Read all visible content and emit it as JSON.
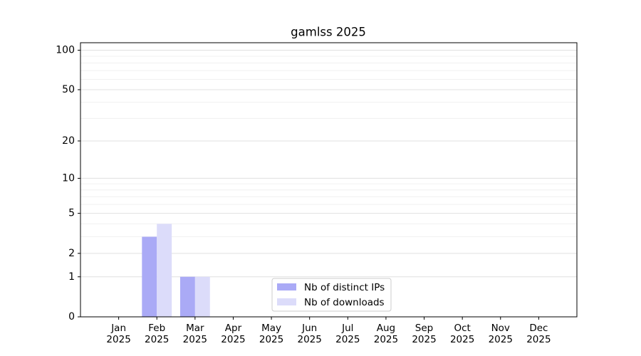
{
  "chart_data": {
    "type": "bar",
    "title": "gamlss 2025",
    "categories": [
      "Jan\n2025",
      "Feb\n2025",
      "Mar\n2025",
      "Apr\n2025",
      "May\n2025",
      "Jun\n2025",
      "Jul\n2025",
      "Aug\n2025",
      "Sep\n2025",
      "Oct\n2025",
      "Nov\n2025",
      "Dec\n2025"
    ],
    "series": [
      {
        "name": "Nb of distinct IPs",
        "color": "#aaaaf6",
        "values": [
          0,
          3,
          1,
          0,
          0,
          0,
          0,
          0,
          0,
          0,
          0,
          0
        ]
      },
      {
        "name": "Nb of downloads",
        "color": "#dcdcfa",
        "values": [
          0,
          4,
          1,
          0,
          0,
          0,
          0,
          0,
          0,
          0,
          0,
          0
        ]
      }
    ],
    "yscale": "log1p",
    "ylim": [
      0,
      114
    ],
    "yticks": [
      0,
      1,
      2,
      5,
      10,
      20,
      50,
      100
    ],
    "yminorticks": [
      3,
      4,
      6,
      7,
      8,
      9,
      30,
      40,
      60,
      70,
      80,
      90
    ],
    "grid": true,
    "legend": "lower center"
  }
}
